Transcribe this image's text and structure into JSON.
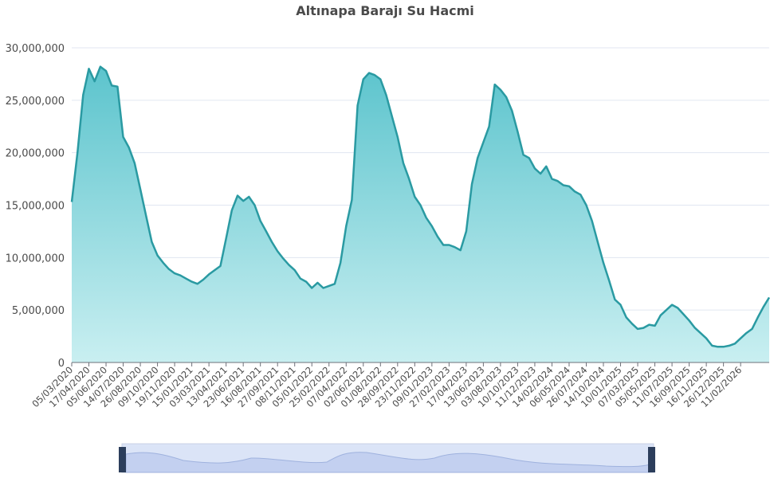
{
  "chart_data": {
    "type": "area",
    "title": "Altınapa Barajı Su Hacmi",
    "categories": [
      "05/03/2020",
      null,
      null,
      "17/04/2020",
      null,
      null,
      "05/06/2020",
      null,
      null,
      "14/07/2020",
      null,
      null,
      "26/08/2020",
      null,
      null,
      "09/10/2020",
      null,
      null,
      "19/11/2020",
      null,
      null,
      "15/01/2021",
      null,
      null,
      "03/03/2021",
      null,
      null,
      "13/04/2021",
      null,
      null,
      "23/06/2021",
      null,
      null,
      "16/08/2021",
      null,
      null,
      "27/09/2021",
      null,
      null,
      "08/11/2021",
      null,
      null,
      "05/01/2022",
      null,
      null,
      "25/02/2022",
      null,
      null,
      "07/04/2022",
      null,
      null,
      "02/06/2022",
      null,
      null,
      "01/08/2022",
      null,
      null,
      "28/09/2022",
      null,
      null,
      "23/11/2022",
      null,
      null,
      "09/01/2023",
      null,
      null,
      "27/02/2023",
      null,
      null,
      "17/04/2023",
      null,
      null,
      "13/06/2023",
      null,
      null,
      "03/08/2023",
      null,
      null,
      "10/10/2023",
      null,
      null,
      "11/12/2023",
      null,
      null,
      "14/02/2024",
      null,
      null,
      "06/05/2024",
      null,
      null,
      "26/07/2024",
      null,
      null,
      "14/10/2024",
      null,
      null,
      "10/01/2025",
      null,
      null,
      "07/03/2025",
      null,
      null,
      "05/05/2025",
      null,
      null,
      "11/07/2025",
      null,
      null,
      "16/09/2025",
      null,
      null,
      "16/11/2025",
      null,
      null,
      "26/12/2025",
      null,
      null,
      "11/02/2026",
      null,
      null,
      null,
      null,
      null
    ],
    "values": [
      15300000,
      20000000,
      25500000,
      28000000,
      26800000,
      28200000,
      27800000,
      26400000,
      26300000,
      21500000,
      20500000,
      19000000,
      16500000,
      14000000,
      11500000,
      10200000,
      9500000,
      8900000,
      8500000,
      8300000,
      8000000,
      7700000,
      7500000,
      7900000,
      8400000,
      8800000,
      9200000,
      11800000,
      14500000,
      15900000,
      15400000,
      15800000,
      15000000,
      13500000,
      12500000,
      11500000,
      10600000,
      9900000,
      9300000,
      8800000,
      8000000,
      7700000,
      7100000,
      7600000,
      7100000,
      7300000,
      7500000,
      9500000,
      13000000,
      15500000,
      24500000,
      27000000,
      27600000,
      27400000,
      27000000,
      25500000,
      23500000,
      21500000,
      19000000,
      17500000,
      15800000,
      15000000,
      13800000,
      13000000,
      12000000,
      11200000,
      11200000,
      11000000,
      10700000,
      12500000,
      17000000,
      19500000,
      21000000,
      22500000,
      26500000,
      26000000,
      25300000,
      24000000,
      22000000,
      19800000,
      19500000,
      18500000,
      18000000,
      18700000,
      17500000,
      17300000,
      16900000,
      16800000,
      16300000,
      16000000,
      15000000,
      13500000,
      11500000,
      9500000,
      7800000,
      6000000,
      5500000,
      4300000,
      3700000,
      3200000,
      3300000,
      3600000,
      3500000,
      4500000,
      5000000,
      5500000,
      5200000,
      4600000,
      4000000,
      3300000,
      2800000,
      2300000,
      1600000,
      1500000,
      1500000,
      1600000,
      1800000,
      2300000,
      2800000,
      3200000,
      4300000,
      5300000,
      6200000
    ],
    "color": "#2a9aa2",
    "ylim": [
      0,
      30000000
    ],
    "yticks": [
      0,
      {
        "value": 5000000,
        "label": "5,000,000"
      },
      {
        "value": 10000000,
        "label": "10,000,000"
      },
      {
        "value": 15000000,
        "label": "15,000,000"
      },
      {
        "value": 20000000,
        "label": "20,000,000"
      },
      {
        "value": 25000000,
        "label": "25,000,000"
      },
      {
        "value": 30000000,
        "label": "30,000,000"
      }
    ],
    "grid": true
  }
}
